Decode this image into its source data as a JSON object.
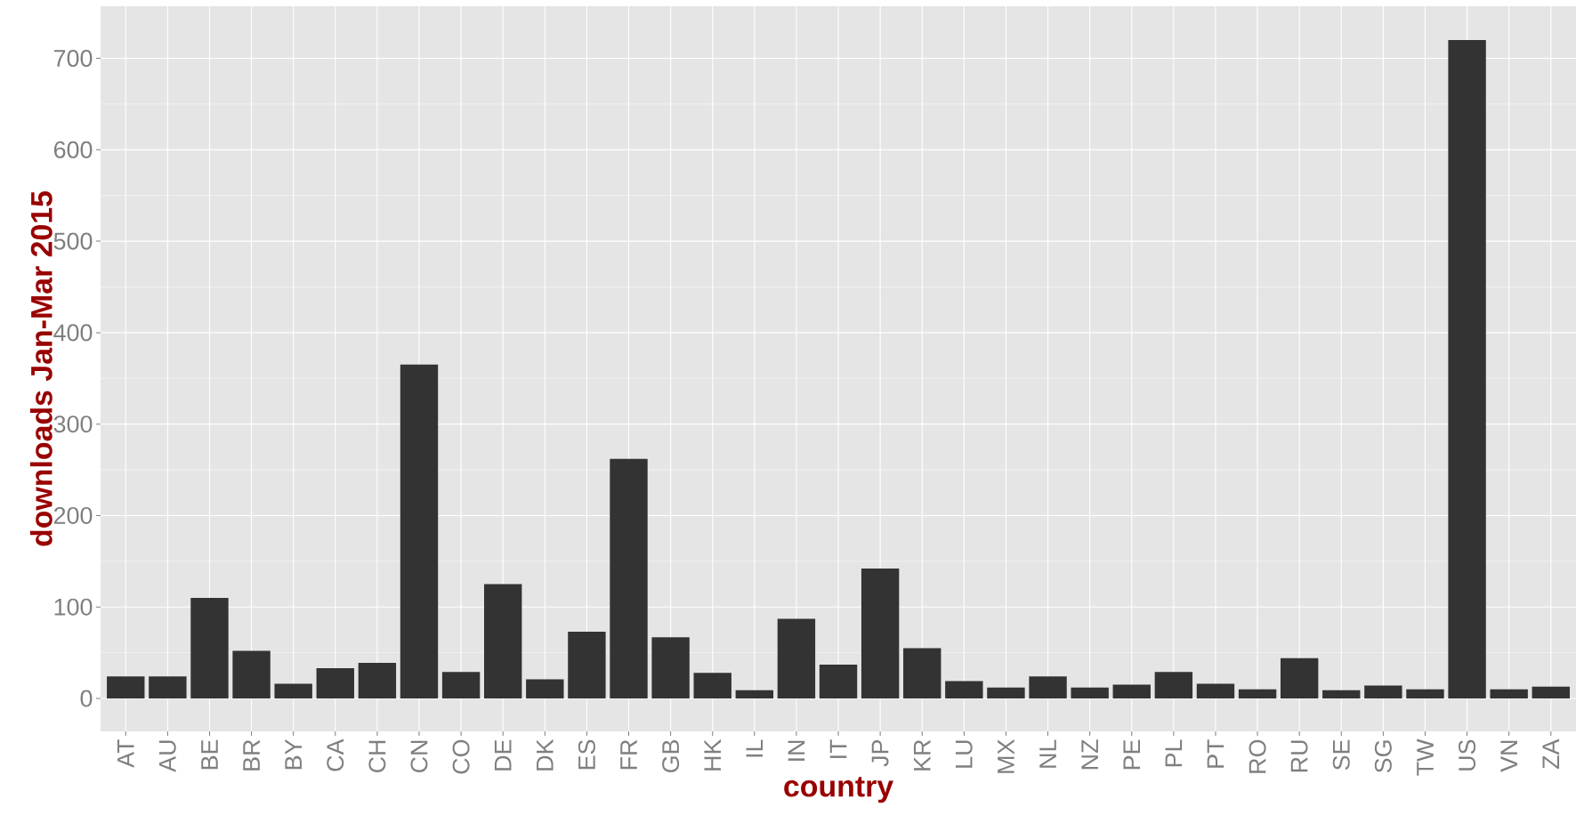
{
  "chart_data": {
    "type": "bar",
    "xlabel": "country",
    "ylabel": "downloads Jan-Mar 2015",
    "categories": [
      "AT",
      "AU",
      "BE",
      "BR",
      "BY",
      "CA",
      "CH",
      "CN",
      "CO",
      "DE",
      "DK",
      "ES",
      "FR",
      "GB",
      "HK",
      "IL",
      "IN",
      "IT",
      "JP",
      "KR",
      "LU",
      "MX",
      "NL",
      "NZ",
      "PE",
      "PL",
      "PT",
      "RO",
      "RU",
      "SE",
      "SG",
      "TW",
      "US",
      "VN",
      "ZA"
    ],
    "values": [
      24,
      24,
      110,
      52,
      16,
      33,
      39,
      365,
      29,
      125,
      21,
      73,
      262,
      67,
      28,
      9,
      87,
      37,
      142,
      55,
      19,
      12,
      24,
      12,
      15,
      29,
      16,
      10,
      44,
      9,
      14,
      10,
      720,
      10,
      13
    ],
    "color": "#333333",
    "ylim": [
      -36,
      757
    ],
    "yticks": [
      0,
      100,
      200,
      300,
      400,
      500,
      600,
      700
    ],
    "grid": true
  }
}
